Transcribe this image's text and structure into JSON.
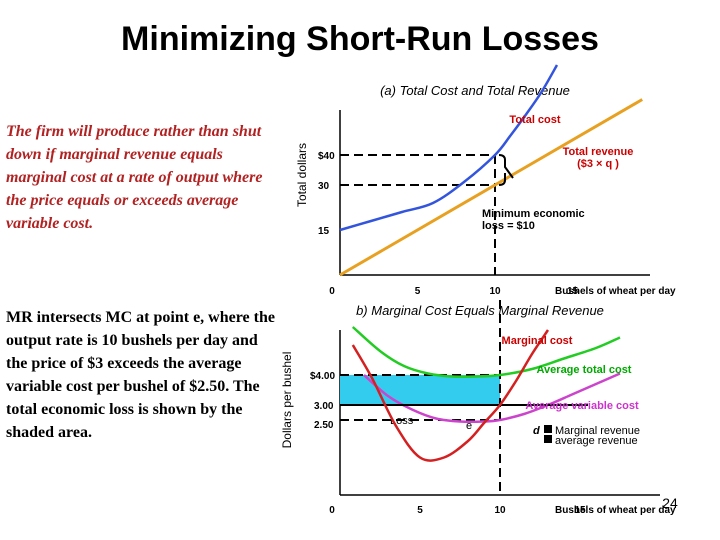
{
  "title": "Minimizing Short-Run Losses",
  "notes": {
    "red": "The firm will produce rather than shut down if marginal revenue equals marginal cost at a rate of output where the price equals or exceeds average variable cost.",
    "black": "MR intersects MC at point e, where the output rate is 10 bushels per day and the price of $3 exceeds the average variable cost per bushel of $2.50. The total economic loss is shown by the shaded area."
  },
  "page_number": "24",
  "colors": {
    "total_cost": "#3355dd",
    "total_revenue": "#e8a020",
    "marginal_cost": "#d42020",
    "average_total_cost": "#22cc22",
    "average_variable_cost": "#cc44cc",
    "marginal_revenue": "#000000",
    "loss_area": "#33ccee",
    "label_red": "#cc0000",
    "label_green": "#00aa00",
    "label_magenta": "#cc33cc"
  },
  "chart_data": [
    {
      "type": "line",
      "title": "(a) Total Cost and Total Revenue",
      "ylabel": "Total dollars",
      "xlabel": "Bushels of wheat per day",
      "x_ticks": [
        "0",
        "5",
        "10",
        "15"
      ],
      "y_ticks": [
        "$40",
        "30",
        "15"
      ],
      "xlim": [
        0,
        20
      ],
      "ylim": [
        0,
        60
      ],
      "series": [
        {
          "name": "Total cost",
          "x": [
            0,
            2,
            4,
            6,
            8,
            10,
            11,
            12,
            13,
            14
          ],
          "y": [
            15,
            18,
            21,
            24,
            31,
            40,
            46.5,
            53.5,
            61,
            70
          ]
        },
        {
          "name": "Total revenue",
          "x": [
            0,
            19.5
          ],
          "y": [
            0,
            58.5
          ]
        }
      ],
      "tr_legend_symbol": "($3 × q )",
      "annotations": [
        {
          "text": "Minimum economic loss = $10",
          "x": 10,
          "y_from": 30,
          "y_to": 40
        }
      ]
    },
    {
      "type": "line",
      "title": "b) Marginal Cost Equals Marginal Revenue",
      "ylabel": "Dollars per bushel",
      "xlabel": "Bushels of wheat per day",
      "x_ticks": [
        "0",
        "5",
        "10",
        "15"
      ],
      "y_ticks": [
        "$4.00",
        "3.00",
        "2.50"
      ],
      "xlim": [
        0,
        20
      ],
      "ylim": [
        0,
        6
      ],
      "series": [
        {
          "name": "Marginal cost",
          "x": [
            0.8,
            2,
            3.5,
            5,
            6.5,
            8,
            9,
            10,
            11,
            12,
            13
          ],
          "y": [
            5.0,
            3.9,
            2.3,
            1.25,
            1.25,
            1.8,
            2.4,
            3.0,
            3.8,
            4.7,
            5.5
          ]
        },
        {
          "name": "Average total cost",
          "x": [
            0.8,
            2.5,
            4,
            5.5,
            7,
            8.5,
            10,
            12,
            14,
            16,
            17.5
          ],
          "y": [
            5.6,
            4.8,
            4.3,
            4.05,
            3.95,
            3.95,
            4.0,
            4.2,
            4.55,
            4.9,
            5.25
          ]
        },
        {
          "name": "Average variable cost",
          "x": [
            1.5,
            3,
            4.5,
            6,
            7.5,
            9,
            10,
            11.5,
            13,
            14.5,
            16,
            17.5
          ],
          "y": [
            4.0,
            3.3,
            2.85,
            2.55,
            2.45,
            2.45,
            2.5,
            2.7,
            3.0,
            3.35,
            3.7,
            4.05
          ]
        },
        {
          "name": "Marginal revenue",
          "x": [
            0,
            15.5
          ],
          "y": [
            3,
            3
          ]
        }
      ],
      "mr_labels": {
        "d": "d",
        "mr": "Marginal revenue",
        "ar": "average revenue"
      },
      "point_label": "e",
      "loss_label": "Loss",
      "loss_area": {
        "x": [
          0,
          10
        ],
        "y": [
          3,
          4
        ]
      }
    }
  ]
}
